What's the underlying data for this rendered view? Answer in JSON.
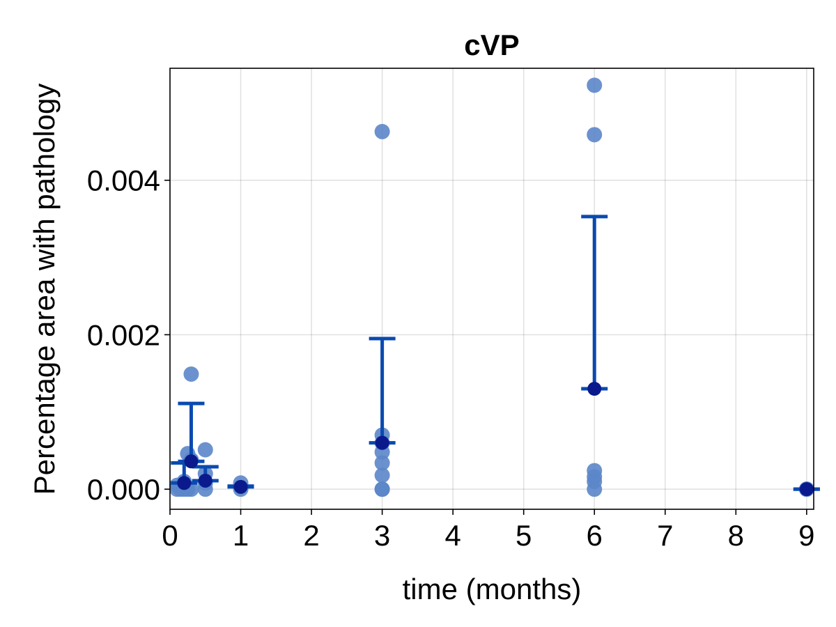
{
  "chart_data": {
    "type": "scatter",
    "title": "cVP",
    "xlabel": "time (months)",
    "ylabel": "Percentage area with pathology",
    "xlim": [
      0,
      9.1
    ],
    "ylim": [
      -0.00026,
      0.00545
    ],
    "x_ticks": [
      0,
      1,
      2,
      3,
      4,
      5,
      6,
      7,
      8,
      9
    ],
    "x_tick_labels": [
      "0",
      "1",
      "2",
      "3",
      "4",
      "5",
      "6",
      "7",
      "8",
      "9"
    ],
    "y_ticks": [
      0,
      0.002,
      0.004
    ],
    "y_tick_labels": [
      "0.000",
      "0.002",
      "0.004"
    ],
    "grid": true,
    "colors": {
      "points": "#5b86c9",
      "mean": "#0a1a8c",
      "errorbar": "#0a4ab0"
    },
    "series": [
      {
        "role": "individual",
        "points": [
          {
            "x": 0.1,
            "y": 0.0
          },
          {
            "x": 0.1,
            "y": 5e-05
          },
          {
            "x": 0.15,
            "y": 0.0
          },
          {
            "x": 0.2,
            "y": 0.0
          },
          {
            "x": 0.2,
            "y": 5e-05
          },
          {
            "x": 0.2,
            "y": 0.0001
          },
          {
            "x": 0.25,
            "y": 0.00046
          },
          {
            "x": 0.25,
            "y": 0.0
          },
          {
            "x": 0.3,
            "y": 0.00149
          },
          {
            "x": 0.3,
            "y": 0.00038
          },
          {
            "x": 0.3,
            "y": 0.0
          },
          {
            "x": 0.5,
            "y": 0.00051
          },
          {
            "x": 0.5,
            "y": 0.0002
          },
          {
            "x": 0.5,
            "y": 8e-05
          },
          {
            "x": 0.5,
            "y": 0.0
          },
          {
            "x": 1.0,
            "y": 0.0
          },
          {
            "x": 1.0,
            "y": 8e-05
          },
          {
            "x": 3.0,
            "y": 0.00463
          },
          {
            "x": 3.0,
            "y": 0.0007
          },
          {
            "x": 3.0,
            "y": 0.0006
          },
          {
            "x": 3.0,
            "y": 0.00048
          },
          {
            "x": 3.0,
            "y": 0.00034
          },
          {
            "x": 3.0,
            "y": 0.00018
          },
          {
            "x": 3.0,
            "y": 0.0
          },
          {
            "x": 3.0,
            "y": 0.0
          },
          {
            "x": 6.0,
            "y": 0.00523
          },
          {
            "x": 6.0,
            "y": 0.00459
          },
          {
            "x": 6.0,
            "y": 0.00024
          },
          {
            "x": 6.0,
            "y": 0.00016
          },
          {
            "x": 6.0,
            "y": 0.0001
          },
          {
            "x": 6.0,
            "y": 0.0
          },
          {
            "x": 9.0,
            "y": 0.0
          },
          {
            "x": 9.0,
            "y": 0.0
          }
        ]
      },
      {
        "role": "mean_with_error",
        "points": [
          {
            "x": 0.2,
            "y": 8e-05,
            "low": 8e-05,
            "high": 0.00034
          },
          {
            "x": 0.3,
            "y": 0.00036,
            "low": 0.00036,
            "high": 0.00111
          },
          {
            "x": 0.5,
            "y": 0.00011,
            "low": 0.00011,
            "high": 0.00029
          },
          {
            "x": 1.0,
            "y": 3e-05,
            "low": 3e-05,
            "high": 4e-05
          },
          {
            "x": 3.0,
            "y": 0.0006,
            "low": 0.0006,
            "high": 0.00195
          },
          {
            "x": 6.0,
            "y": 0.0013,
            "low": 0.0013,
            "high": 0.00353
          },
          {
            "x": 9.0,
            "y": 0.0,
            "low": 0.0,
            "high": 0.0
          }
        ]
      }
    ]
  }
}
